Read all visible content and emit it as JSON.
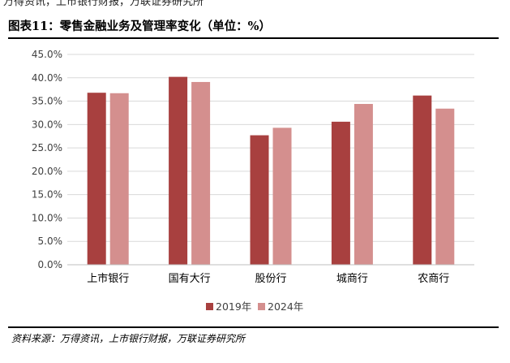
{
  "header": {
    "cut_text": "万得资讯，上市银行财报，万联证券研究所",
    "figure_title": "图表11：零售金融业务及管理率变化（单位：%）"
  },
  "footer": {
    "source": "资料来源：万得资讯，上市银行财报，万联证券研究所"
  },
  "colors": {
    "series_2019": "#a8403f",
    "series_2024": "#d48f8e",
    "grid": "#d9d9d9",
    "axis_text": "#404040"
  },
  "chart_data": {
    "type": "bar",
    "categories": [
      "上市银行",
      "国有大行",
      "股份行",
      "城商行",
      "农商行"
    ],
    "series": [
      {
        "name": "2019年",
        "values": [
          36.8,
          40.2,
          27.7,
          30.6,
          36.2
        ]
      },
      {
        "name": "2024年",
        "values": [
          36.7,
          39.1,
          29.3,
          34.4,
          33.4
        ]
      }
    ],
    "ylim": [
      0,
      45
    ],
    "yticks": [
      "0.0%",
      "5.0%",
      "10.0%",
      "15.0%",
      "20.0%",
      "25.0%",
      "30.0%",
      "35.0%",
      "40.0%",
      "45.0%"
    ],
    "ytick_values": [
      0,
      5,
      10,
      15,
      20,
      25,
      30,
      35,
      40,
      45
    ],
    "grid": true,
    "legend_position": "bottom"
  }
}
